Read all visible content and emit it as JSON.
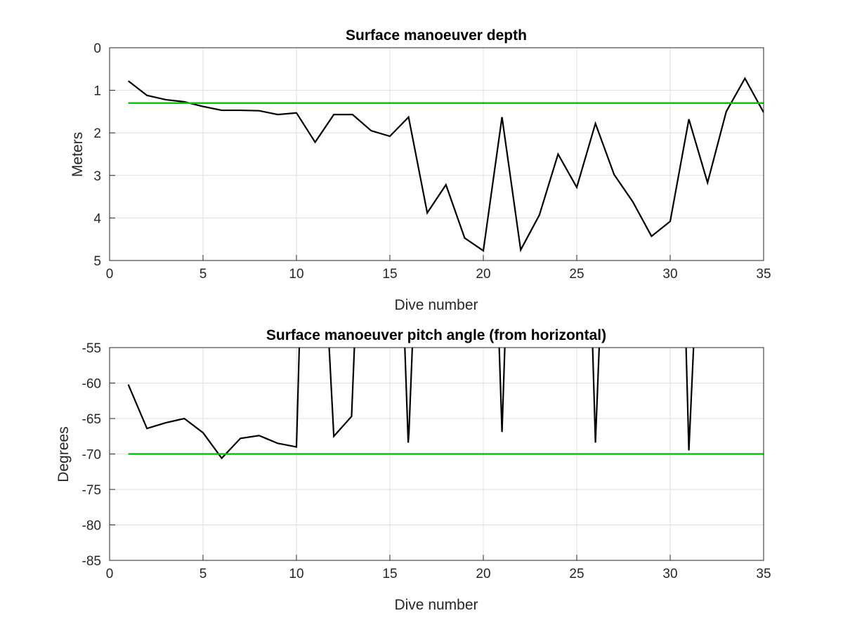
{
  "chart_data": [
    {
      "type": "line",
      "title": "Surface manoeuver depth",
      "xlabel": "Dive number",
      "ylabel": "Meters",
      "xlim": [
        0,
        35
      ],
      "ylim": [
        0,
        5
      ],
      "y_reversed": true,
      "grid": true,
      "xticks": [
        "0",
        "5",
        "10",
        "15",
        "20",
        "25",
        "30",
        "35"
      ],
      "yticks": [
        "0",
        "1",
        "2",
        "3",
        "4",
        "5"
      ],
      "series": [
        {
          "color": "#000000",
          "x": [
            1,
            2,
            3,
            4,
            5,
            6,
            7,
            8,
            9,
            10,
            11,
            12,
            13,
            14,
            15,
            16,
            17,
            18,
            19,
            20,
            21,
            22,
            23,
            24,
            25,
            26,
            27,
            28,
            29,
            30,
            31,
            32,
            33,
            34,
            35
          ],
          "y": [
            0.78,
            1.12,
            1.22,
            1.27,
            1.38,
            1.47,
            1.47,
            1.48,
            1.57,
            1.53,
            2.22,
            1.57,
            1.57,
            1.95,
            2.08,
            1.63,
            3.88,
            3.22,
            4.47,
            4.77,
            1.63,
            4.75,
            3.93,
            2.5,
            3.28,
            1.78,
            2.98,
            3.62,
            4.43,
            4.08,
            1.68,
            3.17,
            1.5,
            0.72,
            1.52
          ]
        },
        {
          "color": "#00cc00",
          "x": [
            1,
            35
          ],
          "y": [
            1.3,
            1.3
          ]
        }
      ]
    },
    {
      "type": "line",
      "title": "Surface manoeuver pitch angle (from horizontal)",
      "xlabel": "Dive number",
      "ylabel": "Degrees",
      "xlim": [
        0,
        35
      ],
      "ylim": [
        -85,
        -55
      ],
      "grid": true,
      "xticks": [
        "0",
        "5",
        "10",
        "15",
        "20",
        "25",
        "30",
        "35"
      ],
      "yticks": [
        "-55",
        "-60",
        "-65",
        "-70",
        "-75",
        "-80",
        "-85"
      ],
      "series": [
        {
          "color": "#000000",
          "segments": [
            {
              "x": [
                1,
                2,
                3,
                4,
                5,
                6,
                7,
                8,
                9,
                10,
                10.15
              ],
              "y": [
                -60.2,
                -66.4,
                -65.6,
                -65.0,
                -67.0,
                -70.6,
                -67.8,
                -67.4,
                -68.5,
                -69.0,
                -55
              ]
            },
            {
              "x": [
                11.75,
                12,
                12.95,
                13.1
              ],
              "y": [
                -55,
                -67.5,
                -64.7,
                -55
              ]
            },
            {
              "x": [
                15.8,
                15.98,
                16.02,
                16.2
              ],
              "y": [
                -55,
                -68.4,
                -67.0,
                -55
              ]
            },
            {
              "x": [
                20.85,
                21,
                21.15
              ],
              "y": [
                -55,
                -66.9,
                -55
              ]
            },
            {
              "x": [
                25.85,
                26,
                26.2
              ],
              "y": [
                -55,
                -68.4,
                -55
              ]
            },
            {
              "x": [
                30.85,
                31,
                31.25
              ],
              "y": [
                -55,
                -69.5,
                -55
              ]
            }
          ]
        },
        {
          "color": "#00cc00",
          "segments": [
            {
              "x": [
                1,
                35
              ],
              "y": [
                -70,
                -70
              ]
            }
          ]
        }
      ]
    }
  ]
}
